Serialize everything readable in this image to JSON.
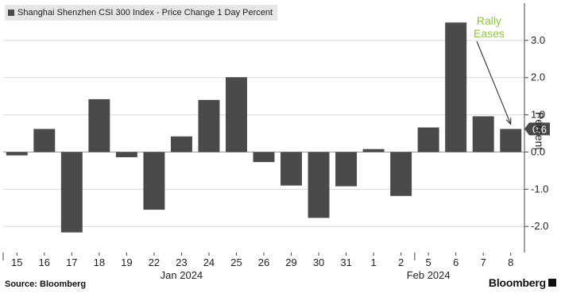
{
  "chart_data": {
    "type": "bar",
    "title": "Shanghai Shenzhen CSI 300 Index - Price Change 1 Day Percent",
    "ylabel": "Percent",
    "categories": [
      "15",
      "16",
      "17",
      "18",
      "19",
      "22",
      "23",
      "24",
      "25",
      "26",
      "29",
      "30",
      "31",
      "1",
      "2",
      "5",
      "6",
      "7",
      "8"
    ],
    "month_labels": [
      {
        "label": "Jan 2024",
        "under": "23"
      },
      {
        "label": "Feb 2024",
        "under": "5"
      }
    ],
    "series": [
      {
        "values": [
          -0.09,
          0.62,
          -2.16,
          1.42,
          -0.14,
          -1.55,
          0.42,
          1.4,
          2.01,
          -0.27,
          -0.9,
          -1.77,
          -0.92,
          0.08,
          -1.18,
          0.66,
          3.48,
          0.96,
          0.62
        ]
      }
    ],
    "ylim": [
      -2.7,
      4.0
    ],
    "yticks": [
      -2.0,
      -1.0,
      0.0,
      1.0,
      2.0,
      3.0
    ],
    "ytick_labels": [
      "-2.0",
      "-1.0",
      "0.0",
      "1.0",
      "2.0",
      "3.0"
    ],
    "last_value_label": "0.6",
    "annotation": {
      "text_lines": [
        "Rally",
        "Eases"
      ],
      "color": "#8dc63f",
      "points_to": "8"
    },
    "grid": true,
    "bar_color": "#4a4a4a",
    "grid_color": "#d9d9d9"
  },
  "source": "Source: Bloomberg",
  "brand": "Bloomberg"
}
